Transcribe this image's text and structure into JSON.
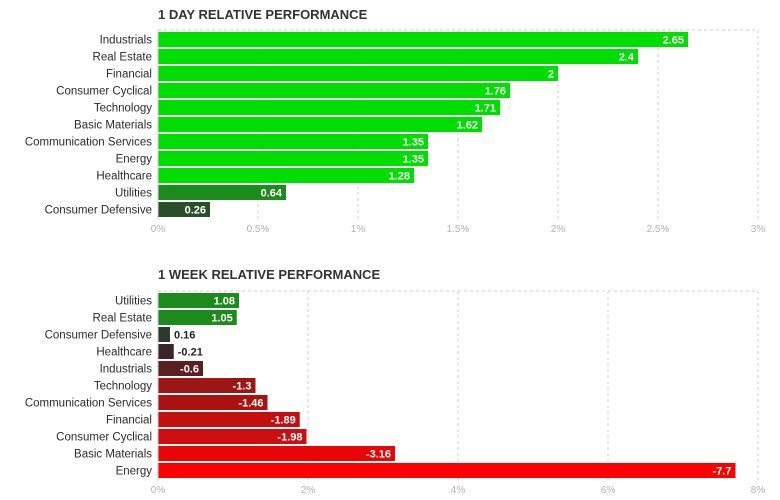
{
  "chart_data": [
    {
      "type": "bar",
      "orientation": "horizontal",
      "title": "1 DAY RELATIVE PERFORMANCE",
      "categories": [
        "Industrials",
        "Real Estate",
        "Financial",
        "Consumer Cyclical",
        "Technology",
        "Basic Materials",
        "Communication Services",
        "Energy",
        "Healthcare",
        "Utilities",
        "Consumer Defensive"
      ],
      "values": [
        2.65,
        2.4,
        2,
        1.76,
        1.71,
        1.62,
        1.35,
        1.35,
        1.28,
        0.64,
        0.26
      ],
      "value_labels": [
        "2.65",
        "2.4",
        "2",
        "1.76",
        "1.71",
        "1.62",
        "1.35",
        "1.35",
        "1.28",
        "0.64",
        "0.26"
      ],
      "bar_colors": [
        "#00dd00",
        "#00dd00",
        "#00dd00",
        "#00dd00",
        "#00dd00",
        "#00dd00",
        "#00dd00",
        "#00dd00",
        "#00dd00",
        "#1d8a1d",
        "#2a4f2a"
      ],
      "xlim": [
        0,
        3
      ],
      "xticks": [
        0,
        0.5,
        1,
        1.5,
        2,
        2.5,
        3
      ],
      "xtick_labels": [
        "0%",
        "0.5%",
        "1%",
        "1.5%",
        "2%",
        "2.5%",
        "3%"
      ],
      "grid": true,
      "xlabel": "",
      "ylabel": ""
    },
    {
      "type": "bar",
      "orientation": "horizontal",
      "title": "1 WEEK RELATIVE PERFORMANCE",
      "categories": [
        "Utilities",
        "Real Estate",
        "Consumer Defensive",
        "Healthcare",
        "Industrials",
        "Technology",
        "Communication Services",
        "Financial",
        "Consumer Cyclical",
        "Basic Materials",
        "Energy"
      ],
      "values": [
        1.08,
        1.05,
        0.16,
        -0.21,
        -0.6,
        -1.3,
        -1.46,
        -1.89,
        -1.98,
        -3.16,
        -7.7
      ],
      "value_labels": [
        "1.08",
        "1.05",
        "0.16",
        "-0.21",
        "-0.6",
        "-1.3",
        "-1.46",
        "-1.89",
        "-1.98",
        "-3.16",
        "-7.7"
      ],
      "bar_colors": [
        "#1d8a1d",
        "#1d8a1d",
        "#2f3a2f",
        "#3a2626",
        "#5a1f1f",
        "#9c1616",
        "#aa1212",
        "#c40f0f",
        "#cc0e0e",
        "#e80505",
        "#ff0000"
      ],
      "xlim": [
        0,
        8
      ],
      "xticks": [
        0,
        2,
        4,
        6,
        8
      ],
      "xtick_labels": [
        "0%",
        "2%",
        "4%",
        "6%",
        "8%"
      ],
      "scale": "absolute value",
      "grid": true,
      "xlabel": "",
      "ylabel": ""
    }
  ]
}
